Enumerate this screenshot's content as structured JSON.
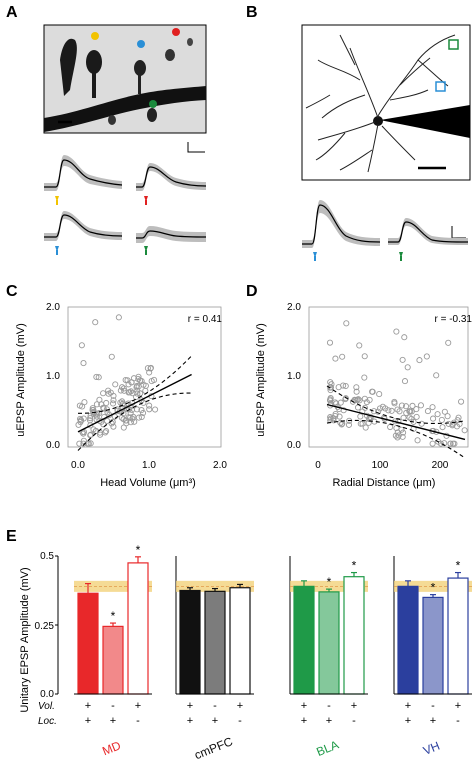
{
  "panels": {
    "A": "A",
    "B": "B",
    "C": "C",
    "D": "D",
    "E": "E"
  },
  "colors": {
    "yellow": "#f2c300",
    "red": "#e02020",
    "blue": "#2a8fd6",
    "green": "#1a8a3c",
    "md": "#e8282a",
    "cmpfc": "#111111",
    "bla": "#1f9a48",
    "vh": "#2b3f9e",
    "band": "#f3d27a"
  },
  "chart_data": [
    {
      "type": "scatter",
      "panel": "C",
      "xlabel": "Head Volume (μm³)",
      "ylabel": "uEPSP Amplitude (mV)",
      "xlim": [
        0,
        2.0
      ],
      "ylim": [
        0,
        2.0
      ],
      "xticks": [
        "0.0",
        "1.0",
        "2.0"
      ],
      "yticks": [
        "0.0",
        "1.0",
        "2.0"
      ],
      "annotation": "r = 0.41",
      "fit": {
        "slope": 0.52,
        "intercept": 0.19,
        "x_range": [
          0,
          1.6
        ]
      }
    },
    {
      "type": "scatter",
      "panel": "D",
      "xlabel": "Radial Distance (μm)",
      "ylabel": "uEPSP Amplitude (mV)",
      "xlim": [
        0,
        250
      ],
      "ylim": [
        0,
        2.0
      ],
      "xticks": [
        "0",
        "100",
        "200"
      ],
      "yticks": [
        "0.0",
        "1.0",
        "2.0"
      ],
      "annotation": "r = -0.31",
      "fit": {
        "slope": -0.0022,
        "intercept": 0.62,
        "x_range": [
          15,
          245
        ]
      }
    },
    {
      "type": "bar",
      "panel": "E",
      "ylabel": "Unitary EPSP Amplitude (mV)",
      "ylim": [
        0,
        0.5
      ],
      "yticks": [
        "0.0",
        "0.25",
        "0.5"
      ],
      "row_labels": [
        "Vol.",
        "Loc."
      ],
      "conditions": [
        [
          "+",
          "+"
        ],
        [
          "-",
          "+"
        ],
        [
          "+",
          "-"
        ]
      ],
      "reference_band": [
        0.37,
        0.41
      ],
      "groups": [
        {
          "name": "MD",
          "values": [
            0.365,
            0.245,
            0.475
          ],
          "errors": [
            0.035,
            0.012,
            0.022
          ],
          "stars": [
            false,
            true,
            true
          ]
        },
        {
          "name": "cmPFC",
          "values": [
            0.375,
            0.372,
            0.385
          ],
          "errors": [
            0.01,
            0.01,
            0.012
          ],
          "stars": [
            false,
            false,
            false
          ]
        },
        {
          "name": "BLA",
          "values": [
            0.39,
            0.37,
            0.425
          ],
          "errors": [
            0.02,
            0.01,
            0.015
          ],
          "stars": [
            false,
            true,
            true
          ]
        },
        {
          "name": "VH",
          "values": [
            0.39,
            0.35,
            0.42
          ],
          "errors": [
            0.02,
            0.01,
            0.02
          ],
          "stars": [
            false,
            true,
            true
          ]
        }
      ]
    }
  ]
}
